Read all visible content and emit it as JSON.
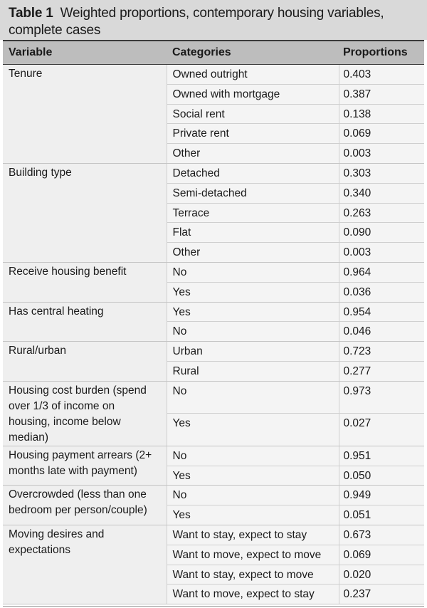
{
  "table": {
    "label": "Table 1",
    "title_line1": "Weighted proportions, contemporary housing variables,",
    "title_line2": "complete cases",
    "headers": {
      "variable": "Variable",
      "categories": "Categories",
      "proportions": "Proportions"
    },
    "groups": [
      {
        "variable": "Tenure",
        "rows": [
          {
            "category": "Owned outright",
            "proportion": "0.403"
          },
          {
            "category": "Owned with mortgage",
            "proportion": "0.387"
          },
          {
            "category": "Social rent",
            "proportion": "0.138"
          },
          {
            "category": "Private rent",
            "proportion": "0.069"
          },
          {
            "category": "Other",
            "proportion": "0.003"
          }
        ]
      },
      {
        "variable": "Building type",
        "rows": [
          {
            "category": "Detached",
            "proportion": "0.303"
          },
          {
            "category": "Semi-detached",
            "proportion": "0.340"
          },
          {
            "category": "Terrace",
            "proportion": "0.263"
          },
          {
            "category": "Flat",
            "proportion": "0.090"
          },
          {
            "category": "Other",
            "proportion": "0.003"
          }
        ]
      },
      {
        "variable": "Receive housing benefit",
        "rows": [
          {
            "category": "No",
            "proportion": "0.964"
          },
          {
            "category": "Yes",
            "proportion": "0.036"
          }
        ]
      },
      {
        "variable": "Has central heating",
        "rows": [
          {
            "category": "Yes",
            "proportion": "0.954"
          },
          {
            "category": "No",
            "proportion": "0.046"
          }
        ]
      },
      {
        "variable": "Rural/urban",
        "rows": [
          {
            "category": "Urban",
            "proportion": "0.723"
          },
          {
            "category": "Rural",
            "proportion": "0.277"
          }
        ]
      },
      {
        "variable": "Housing cost burden (spend over 1/3 of income on housing, income below median)",
        "rows": [
          {
            "category": "No",
            "proportion": "0.973"
          },
          {
            "category": "Yes",
            "proportion": "0.027"
          }
        ]
      },
      {
        "variable": "Housing payment arrears (2+ months late with payment)",
        "rows": [
          {
            "category": "No",
            "proportion": "0.951"
          },
          {
            "category": "Yes",
            "proportion": "0.050"
          }
        ]
      },
      {
        "variable": "Overcrowded (less than one bedroom per person/couple)",
        "rows": [
          {
            "category": "No",
            "proportion": "0.949"
          },
          {
            "category": "Yes",
            "proportion": "0.051"
          }
        ]
      },
      {
        "variable": "Moving desires and expectations",
        "rows": [
          {
            "category": "Want to stay, expect to stay",
            "proportion": "0.673"
          },
          {
            "category": "Want to move, expect to move",
            "proportion": "0.069"
          },
          {
            "category": "Want to stay, expect to move",
            "proportion": "0.020"
          },
          {
            "category": "Want to move, expect to stay",
            "proportion": "0.237"
          }
        ]
      }
    ]
  }
}
